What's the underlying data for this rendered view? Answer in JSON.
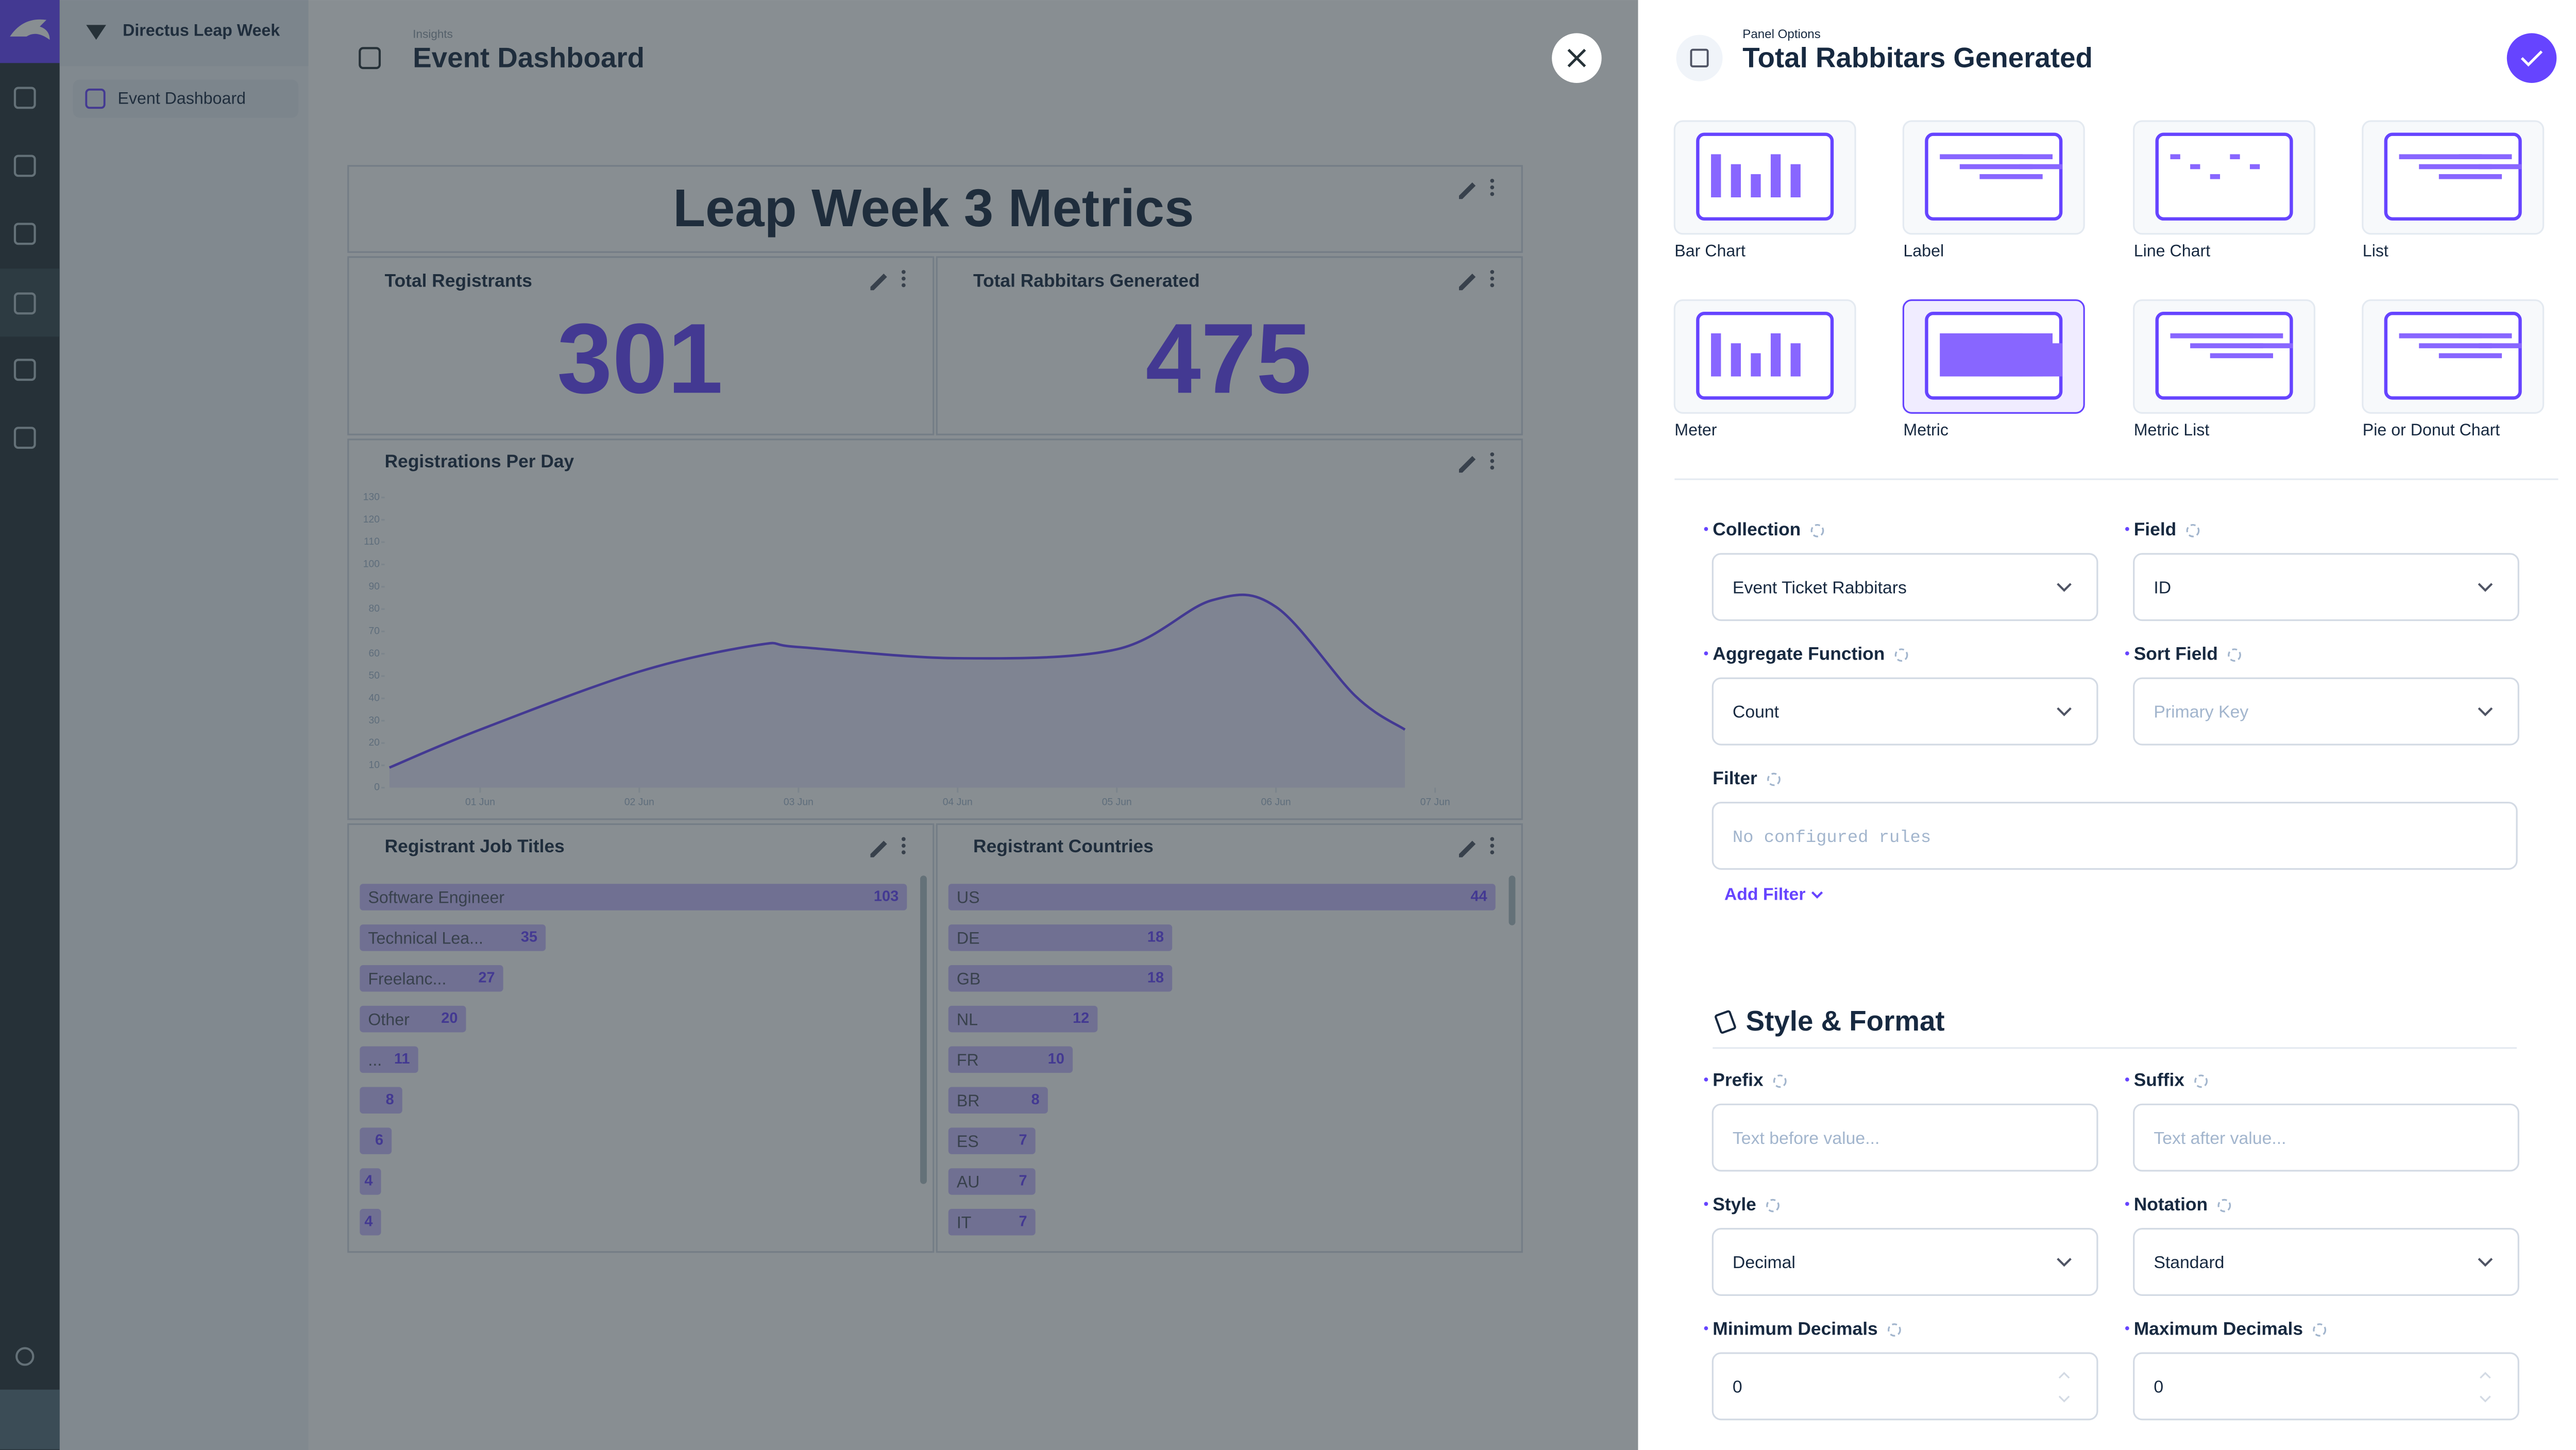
{
  "sidebar": {
    "project": "Directus Leap Week",
    "nav": [
      "Event Dashboard"
    ]
  },
  "header": {
    "breadcrumb": "Insights",
    "title": "Event Dashboard"
  },
  "dashboard": {
    "label_panel": "Leap Week 3 Metrics",
    "metrics": [
      {
        "title": "Total Registrants",
        "value": 301
      },
      {
        "title": "Total Rabbitars Generated",
        "value": 475
      }
    ]
  },
  "chart_data": [
    {
      "type": "line",
      "title": "Registrations Per Day",
      "x": [
        0.43,
        1,
        2,
        2.75,
        3,
        4,
        5,
        5.6,
        6,
        6.5,
        6.81
      ],
      "series": [
        {
          "color": "#6644ff",
          "values": [
            9,
            26,
            52,
            64,
            63,
            58,
            62,
            84,
            81,
            41,
            26
          ]
        }
      ],
      "xlim": [
        0.4,
        7.15
      ],
      "xticks": [
        {
          "value": 1,
          "label": "01 Jun"
        },
        {
          "value": 2,
          "label": "02 Jun"
        },
        {
          "value": 3,
          "label": "03 Jun"
        },
        {
          "value": 4,
          "label": "04 Jun"
        },
        {
          "value": 5,
          "label": "05 Jun"
        },
        {
          "value": 6,
          "label": "06 Jun"
        },
        {
          "value": 7,
          "label": "07 Jun"
        }
      ],
      "ylim": [
        0,
        130
      ],
      "yticks": [
        0,
        10,
        20,
        30,
        40,
        50,
        60,
        70,
        80,
        90,
        100,
        110,
        120,
        130
      ]
    },
    {
      "type": "bar",
      "title": "Registrant Job Titles",
      "color": "#c9bdff",
      "categories": [
        "Software Engineer",
        "Technical Lea...",
        "Freelanc...",
        "Other",
        "...",
        null,
        null,
        null,
        null
      ],
      "values": [
        103,
        35,
        27,
        20,
        11,
        8,
        6,
        4,
        4
      ]
    },
    {
      "type": "bar",
      "title": "Registrant Countries",
      "color": "#c9bdff",
      "categories": [
        "US",
        "DE",
        "GB",
        "NL",
        "FR",
        "BR",
        "ES",
        "AU",
        "IT"
      ],
      "values": [
        44,
        18,
        18,
        12,
        10,
        8,
        7,
        7,
        7
      ]
    }
  ],
  "drawer": {
    "subtitle": "Panel Options",
    "title": "Total Rabbitars Generated",
    "panel_types": [
      "Bar Chart",
      "Label",
      "Line Chart",
      "List",
      "Meter",
      "Metric",
      "Metric List",
      "Pie or Donut Chart"
    ],
    "selected_type": "Metric",
    "query_fields": [
      {
        "label": "Collection",
        "value": "Event Ticket Rabbitars"
      },
      {
        "label": "Field",
        "value": "ID"
      },
      {
        "label": "Aggregate Function",
        "value": "Count"
      },
      {
        "label": "Sort Field",
        "placeholder": "Primary Key"
      }
    ],
    "filter": {
      "label": "Filter",
      "placeholder": "No configured rules",
      "action": "Add Filter"
    },
    "section": "Style & Format",
    "style_fields": [
      {
        "label": "Prefix",
        "placeholder": "Text before value..."
      },
      {
        "label": "Suffix",
        "placeholder": "Text after value..."
      },
      {
        "label": "Style",
        "value": "Decimal"
      },
      {
        "label": "Notation",
        "value": "Standard"
      },
      {
        "label": "Minimum Decimals",
        "value": 0
      },
      {
        "label": "Maximum Decimals",
        "value": 0
      }
    ]
  }
}
